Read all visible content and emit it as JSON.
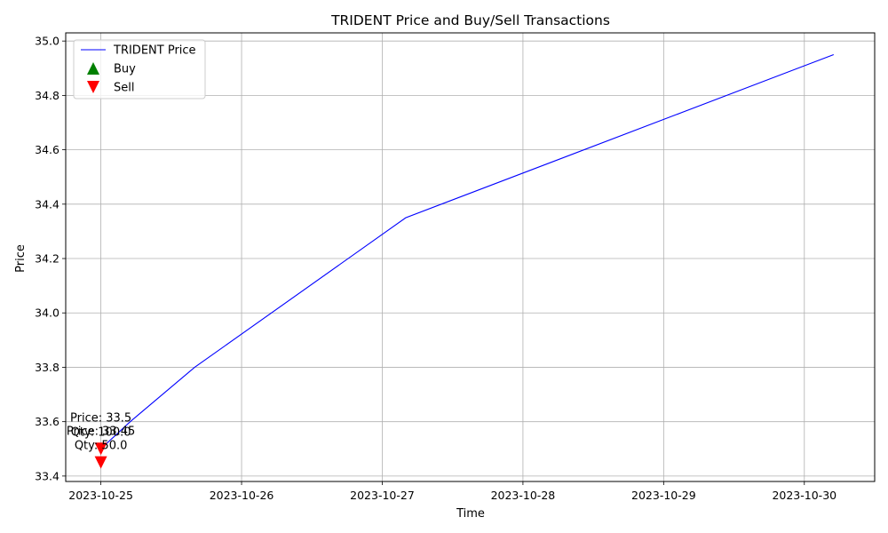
{
  "chart_data": {
    "type": "line",
    "title": "TRIDENT Price and Buy/Sell Transactions",
    "xlabel": "Time",
    "ylabel": "Price",
    "x_ticks": [
      "2023-10-25",
      "2023-10-26",
      "2023-10-27",
      "2023-10-28",
      "2023-10-29",
      "2023-10-30"
    ],
    "xlim": [
      "2023-10-24 18:00",
      "2023-10-30 12:00"
    ],
    "ylim": [
      33.38,
      35.03
    ],
    "y_ticks": [
      "33.4",
      "33.6",
      "33.8",
      "34.0",
      "34.2",
      "34.4",
      "34.6",
      "34.8",
      "35.0"
    ],
    "grid": true,
    "legend_position": "top-left",
    "series": [
      {
        "name": "TRIDENT Price",
        "color": "#0000ff",
        "points": [
          {
            "x": "2023-10-25 00:00",
            "y": 33.5
          },
          {
            "x": "2023-10-25 05:00",
            "y": 33.6
          },
          {
            "x": "2023-10-25 16:00",
            "y": 33.8
          },
          {
            "x": "2023-10-27 04:00",
            "y": 34.35
          },
          {
            "x": "2023-10-30 05:00",
            "y": 34.95
          }
        ]
      }
    ],
    "markers": [
      {
        "kind": "Sell",
        "x": "2023-10-25 00:00",
        "price": 33.5,
        "qty": 100.0,
        "label_line1": "Price: 33.5",
        "label_line2": "Qty: 100.0"
      },
      {
        "kind": "Sell",
        "x": "2023-10-25 00:00",
        "price": 33.45,
        "qty": 50.0,
        "label_line1": "Price: 33.45",
        "label_line2": "Qty: 50.0"
      }
    ],
    "legend": [
      {
        "label": "TRIDENT Price",
        "symbol": "line",
        "color": "#0000ff"
      },
      {
        "label": "Buy",
        "symbol": "triangle-up",
        "color": "#008000"
      },
      {
        "label": "Sell",
        "symbol": "triangle-down",
        "color": "#ff0000"
      }
    ]
  }
}
